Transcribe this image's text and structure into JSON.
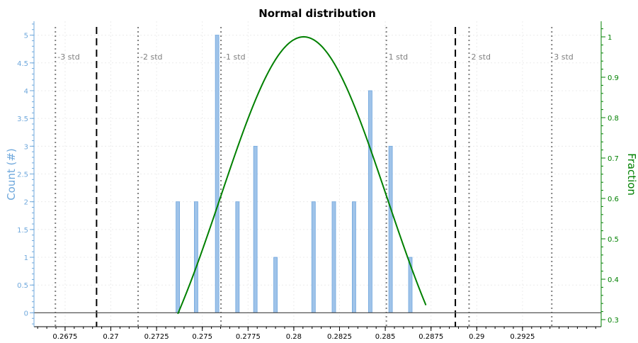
{
  "chart_data": {
    "type": "bar",
    "title": "Normal distribution",
    "ylabel": "Count (#)",
    "y2label": "Fraction",
    "xlabel": "",
    "xlim": [
      0.2658,
      0.2968
    ],
    "ylim": [
      -0.25,
      5.25
    ],
    "y2lim": [
      0.3,
      1.0
    ],
    "grid": true,
    "x_ticks": [
      "0.2675",
      "0.27",
      "0.2725",
      "0.275",
      "0.2775",
      "0.28",
      "0.2825",
      "0.285",
      "0.2875",
      "0.29",
      "0.2925"
    ],
    "y_ticks": [
      "0",
      "0.5",
      "1",
      "1.5",
      "2",
      "2.5",
      "3",
      "3.5",
      "4",
      "4.5",
      "5"
    ],
    "y2_ticks": [
      "0.3",
      "0.4",
      "0.5",
      "0.6",
      "0.7",
      "0.8",
      "0.9",
      "1"
    ],
    "bars": [
      {
        "x": 0.27366,
        "count": 2
      },
      {
        "x": 0.27466,
        "count": 2
      },
      {
        "x": 0.27581,
        "count": 5
      },
      {
        "x": 0.27692,
        "count": 2
      },
      {
        "x": 0.2779,
        "count": 3
      },
      {
        "x": 0.279,
        "count": 1
      },
      {
        "x": 0.28108,
        "count": 2
      },
      {
        "x": 0.28219,
        "count": 2
      },
      {
        "x": 0.28329,
        "count": 2
      },
      {
        "x": 0.28418,
        "count": 4
      },
      {
        "x": 0.28529,
        "count": 3
      },
      {
        "x": 0.28637,
        "count": 1
      }
    ],
    "curve": {
      "mean": 0.28054,
      "std": 0.004522,
      "x_start": 0.27366,
      "x_end": 0.28722,
      "peak": 1.0
    },
    "std_lines": [
      {
        "label": "-3 std",
        "x": 0.26697
      },
      {
        "label": "-2 std",
        "x": 0.27149
      },
      {
        "label": "-1 std",
        "x": 0.27602
      },
      {
        "label": "1 std",
        "x": 0.28506
      },
      {
        "label": "2 std",
        "x": 0.28958
      },
      {
        "label": "3 std",
        "x": 0.2941
      }
    ],
    "limit_lines": [
      0.26922,
      0.28883
    ],
    "colors": {
      "bars": "#9fc3e9",
      "bar_edge": "#6fa6de",
      "curve": "#008000",
      "left_axis": "#6fa8dc",
      "right_axis": "#008000",
      "std_lines": "#808080",
      "limit_lines": "#000000"
    }
  }
}
